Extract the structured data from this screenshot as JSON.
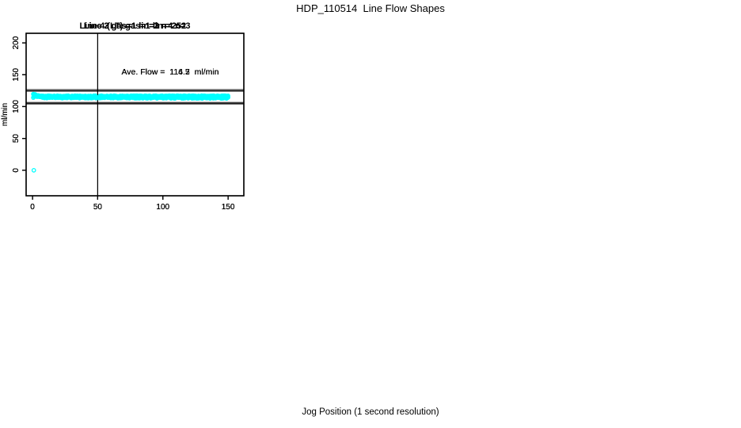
{
  "figure": {
    "title": "HDP_110514  Line Flow Shapes",
    "xlabel": "Jog Position (1 second resolution)",
    "background": "#ffffff",
    "text_color": "#000000"
  },
  "colors": {
    "points": "#00ffff",
    "axis": "#000000"
  },
  "chart_data": [
    {
      "type": "scatter",
      "title": "Line 2 gas=1 lin=2 n=252",
      "line": 2,
      "gas": 1,
      "lin": 2,
      "n": 252,
      "annotation": "Ave. Flow =  114.7  ml/min",
      "ave_flow_ml_min": 114.7,
      "ylabel": "ml/min",
      "x_ticks": [
        0,
        50,
        100,
        150
      ],
      "y_ticks": [
        0,
        50,
        100,
        150,
        200
      ],
      "xlim": [
        -4.9,
        162.1
      ],
      "ylim": [
        -40,
        215
      ],
      "ref_vline_x": 50,
      "ref_hlines_y": [
        124.7,
        104.7
      ],
      "marker": "open-circle",
      "band": {
        "x_start": 0.6,
        "x_end": 150,
        "points": 252,
        "jitter": 0.8,
        "anchors": [
          [
            0.6,
            119.0
          ],
          [
            1.5,
            117.5
          ],
          [
            3,
            115.5
          ],
          [
            6,
            114.6
          ],
          [
            150,
            114.4
          ]
        ]
      },
      "extra_points": []
    },
    {
      "type": "scatter",
      "title": "Line 3 gas=1 lin=3 n=252",
      "line": 3,
      "gas": 1,
      "lin": 3,
      "n": 252,
      "annotation": "Ave. Flow =  116.5  ml/min",
      "ave_flow_ml_min": 116.5,
      "ylabel": "ml/min",
      "x_ticks": [
        0,
        50,
        100,
        150
      ],
      "y_ticks": [
        0,
        50,
        100,
        150,
        200
      ],
      "xlim": [
        -4.9,
        162.1
      ],
      "ylim": [
        -40,
        215
      ],
      "ref_vline_x": 50,
      "ref_hlines_y": [
        126.5,
        106.5
      ],
      "marker": "open-circle",
      "band": {
        "x_start": 0.6,
        "x_end": 150,
        "points": 252,
        "jitter": 0.7,
        "anchors": [
          [
            0.6,
            114.6
          ],
          [
            1.5,
            115.7
          ],
          [
            3,
            116.4
          ],
          [
            150,
            116.5
          ]
        ]
      },
      "extra_points": []
    },
    {
      "type": "scatter",
      "title": "Line 4 (LT) gas=1 lin=4 n=3",
      "line": 4,
      "line_note": "(LT)",
      "gas": 1,
      "lin": 4,
      "n": 3,
      "annotation": "Ave. Flow =  114.2  ml/min",
      "ave_flow_ml_min": 114.2,
      "ylabel": "ml/min",
      "x_ticks": [
        0,
        50,
        100,
        150
      ],
      "y_ticks": [
        0,
        50,
        100,
        150,
        200
      ],
      "xlim": [
        -4.9,
        162.1
      ],
      "ylim": [
        -40,
        215
      ],
      "ref_vline_x": 50,
      "ref_hlines_y": [
        124.2,
        104.2
      ],
      "marker": "open-circle",
      "band": {
        "x_start": 0.8,
        "x_end": 150,
        "points": 250,
        "jitter": 1.2,
        "anchors": [
          [
            0.8,
            119.3
          ],
          [
            3,
            118.0
          ],
          [
            6,
            116.0
          ],
          [
            10,
            114.3
          ],
          [
            150,
            113.8
          ]
        ]
      },
      "extra_points": [
        [
          1,
          0
        ]
      ]
    }
  ]
}
